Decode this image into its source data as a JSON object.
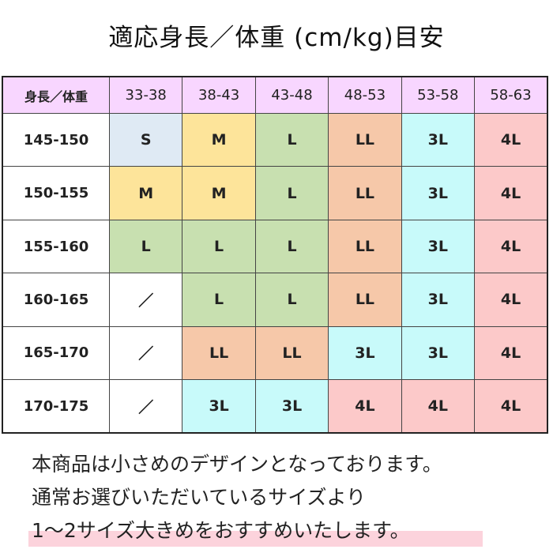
{
  "title": "適応身長／体重 (cm/kg)目安",
  "table": {
    "corner": "身長／体重",
    "columns": [
      "33-38",
      "38-43",
      "43-48",
      "48-53",
      "53-58",
      "58-63"
    ],
    "rows": [
      {
        "height": "145-150",
        "cells": [
          "S",
          "M",
          "L",
          "LL",
          "3L",
          "4L"
        ]
      },
      {
        "height": "150-155",
        "cells": [
          "M",
          "M",
          "L",
          "LL",
          "3L",
          "4L"
        ]
      },
      {
        "height": "155-160",
        "cells": [
          "L",
          "L",
          "L",
          "LL",
          "3L",
          "4L"
        ]
      },
      {
        "height": "160-165",
        "cells": [
          "／",
          "L",
          "L",
          "LL",
          "3L",
          "4L"
        ]
      },
      {
        "height": "165-170",
        "cells": [
          "／",
          "LL",
          "LL",
          "3L",
          "3L",
          "4L"
        ]
      },
      {
        "height": "170-175",
        "cells": [
          "／",
          "3L",
          "3L",
          "4L",
          "4L",
          "4L"
        ]
      }
    ]
  },
  "size_colors": {
    "S": "#dfeaf4",
    "M": "#fde49a",
    "L": "#c8e0b0",
    "LL": "#f6c8a9",
    "3L": "#c8fafa",
    "4L": "#fcc9c9",
    "／": "#ffffff"
  },
  "header_color": "#f8d6ff",
  "note": {
    "line1": "本商品は小さめのデザインとなっております。",
    "line2": "通常お選びいただいているサイズより",
    "line3": "1～2サイズ大きめをおすすめいたします。"
  },
  "highlight_color": "#fcd3dc"
}
